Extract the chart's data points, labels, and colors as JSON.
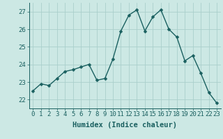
{
  "x": [
    0,
    1,
    2,
    3,
    4,
    5,
    6,
    7,
    8,
    9,
    10,
    11,
    12,
    13,
    14,
    15,
    16,
    17,
    18,
    19,
    20,
    21,
    22,
    23
  ],
  "y": [
    22.5,
    22.9,
    22.8,
    23.2,
    23.6,
    23.7,
    23.85,
    24.0,
    23.1,
    23.2,
    24.3,
    25.9,
    26.8,
    27.1,
    25.9,
    26.7,
    27.1,
    26.0,
    25.55,
    24.2,
    24.5,
    23.5,
    22.4,
    21.8
  ],
  "line_color": "#1a6060",
  "marker_color": "#1a6060",
  "bg_color": "#cce8e4",
  "grid_color": "#aacfcc",
  "xlabel": "Humidex (Indice chaleur)",
  "ylim": [
    21.5,
    27.5
  ],
  "yticks": [
    22,
    23,
    24,
    25,
    26,
    27
  ],
  "xticks": [
    0,
    1,
    2,
    3,
    4,
    5,
    6,
    7,
    8,
    9,
    10,
    11,
    12,
    13,
    14,
    15,
    16,
    17,
    18,
    19,
    20,
    21,
    22,
    23
  ],
  "tick_fontsize": 6.5,
  "xlabel_fontsize": 7.5,
  "linewidth": 1.0,
  "markersize": 2.5
}
